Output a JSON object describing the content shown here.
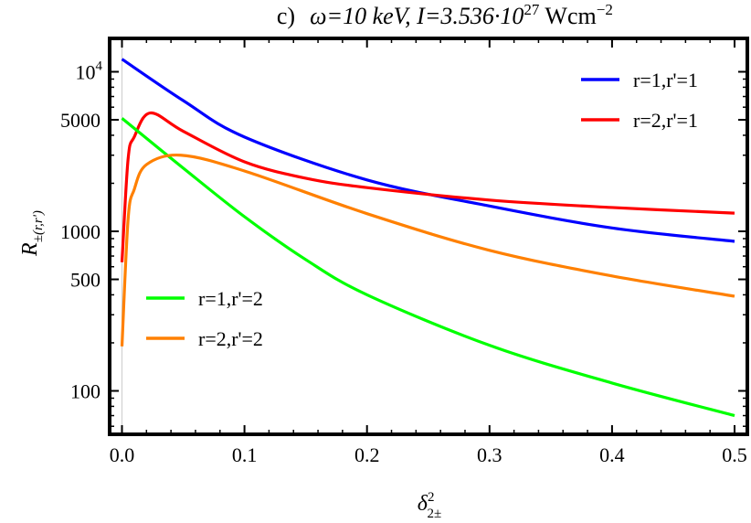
{
  "chart_data": {
    "type": "line",
    "title": "c)",
    "subtitle": "ω=10 keV, I=3.536·10²⁷ Wcm⁻²",
    "subtitle_parts": {
      "pre": "ω=10 keV, I=3.536·10",
      "exp": "27",
      "mid": " Wcm",
      "exp2": "−2"
    },
    "xlabel": "δ",
    "xlabel_sup": "2",
    "xlabel_sub": "2±",
    "ylabel": "R",
    "ylabel_sub": "±(r,r')",
    "xlim": [
      0,
      0.5
    ],
    "ylim": [
      54,
      16300
    ],
    "yscale": "log",
    "grid": false,
    "x_ticks": [
      "0.0",
      "0.1",
      "0.2",
      "0.3",
      "0.4",
      "0.5"
    ],
    "y_ticks": [
      {
        "value": 100,
        "label": "100"
      },
      {
        "value": 500,
        "label": "500"
      },
      {
        "value": 1000,
        "label": "1000"
      },
      {
        "value": 5000,
        "label": "5000"
      },
      {
        "value": 10000,
        "label": "10",
        "sup": "4"
      }
    ],
    "series": [
      {
        "name": "r=1,r'=1",
        "color": "#0000ff",
        "legend": "top-right",
        "x": [
          0,
          0.05,
          0.1,
          0.2,
          0.3,
          0.4,
          0.5
        ],
        "y": [
          12000,
          6600,
          3900,
          2100,
          1440,
          1050,
          865
        ]
      },
      {
        "name": "r=2,r'=1",
        "color": "#ff0000",
        "legend": "top-right",
        "x": [
          0,
          0.005,
          0.01,
          0.023,
          0.05,
          0.1,
          0.15,
          0.2,
          0.3,
          0.4,
          0.5
        ],
        "y": [
          640,
          2840,
          3900,
          5520,
          4240,
          2725,
          2150,
          1880,
          1570,
          1410,
          1300
        ]
      },
      {
        "name": "r=1,r'=2",
        "color": "#00ff00",
        "legend": "bottom-left",
        "x": [
          0,
          0.05,
          0.1,
          0.15,
          0.2,
          0.3,
          0.4,
          0.5
        ],
        "y": [
          5110,
          2490,
          1235,
          665,
          400,
          193,
          112,
          70
        ]
      },
      {
        "name": "r=2,r'=2",
        "color": "#ff8000",
        "legend": "bottom-left",
        "x": [
          0,
          0.005,
          0.01,
          0.02,
          0.048,
          0.1,
          0.2,
          0.3,
          0.4,
          0.5
        ],
        "y": [
          190,
          1190,
          1830,
          2620,
          3000,
          2390,
          1290,
          760,
          525,
          392
        ]
      }
    ]
  }
}
